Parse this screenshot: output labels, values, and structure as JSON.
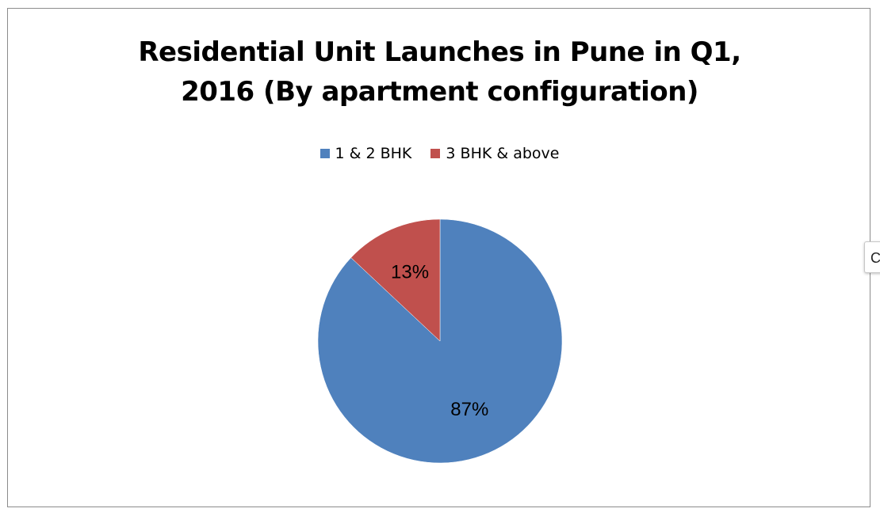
{
  "chart_data": {
    "type": "pie",
    "title": "Residential Unit Launches in Pune in Q1, 2016 (By apartment configuration)",
    "title_lines": [
      "Residential Unit Launches in Pune in Q1,",
      "2016 (By apartment configuration)"
    ],
    "categories": [
      "1 & 2 BHK",
      "3 BHK & above"
    ],
    "values": [
      87,
      13
    ],
    "data_labels": [
      "87%",
      "13%"
    ],
    "colors": [
      "#4f81bd",
      "#c0504d"
    ],
    "legend_position": "top",
    "start_angle": "12 o'clock",
    "direction": "clockwise"
  },
  "side_tab": {
    "label": "C"
  }
}
